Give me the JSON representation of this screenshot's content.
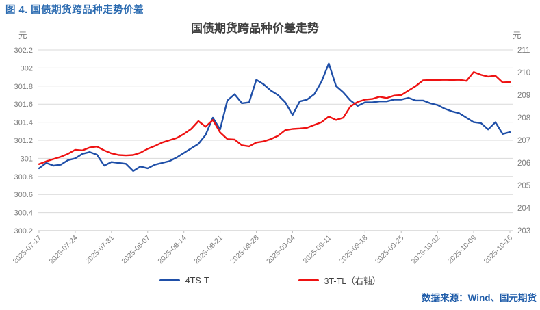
{
  "caption": "图 4. 国债期货跨品种走势价差",
  "source": "数据来源：Wind、国元期货",
  "colors": {
    "caption": "#2A6AB0",
    "source": "#1F5CA9",
    "title": "#404040",
    "axis_text": "#7F7F7F",
    "grid": "#D9D9D9",
    "tick": "#BFBFBF",
    "blue_line": "#1F4FA8",
    "red_line": "#EE1212"
  },
  "chart_data": {
    "type": "line",
    "title": "国债期货跨品种价差走势",
    "grid": true,
    "legend_position": "bottom",
    "left_axis": {
      "unit": "元",
      "min": 300.2,
      "max": 302.2,
      "tick_labels": [
        "302.2",
        "302",
        "301.8",
        "301.6",
        "301.4",
        "301.2",
        "301",
        "300.8",
        "300.6",
        "300.4",
        "300.2"
      ]
    },
    "right_axis": {
      "unit": "元",
      "min": 203,
      "max": 211,
      "tick_labels": [
        "211",
        "210",
        "209",
        "208",
        "207",
        "206",
        "205",
        "204",
        "203"
      ]
    },
    "x_tick_labels": [
      "2025-07-17",
      "2025-07-24",
      "2025-07-31",
      "2025-08-07",
      "2025-08-14",
      "2025-08-21",
      "2025-08-28",
      "2025-09-04",
      "2025-09-11",
      "2025-09-18",
      "2025-09-25",
      "2025-10-02",
      "2025-10-09",
      "2025-10-16"
    ],
    "points_per_tick": 5,
    "series": [
      {
        "name": "4TS-T",
        "axis": "left",
        "color_key": "blue_line",
        "values": [
          300.89,
          300.95,
          300.92,
          300.93,
          300.98,
          301.0,
          301.05,
          301.07,
          301.04,
          300.92,
          300.96,
          300.95,
          300.94,
          300.86,
          300.91,
          300.89,
          300.93,
          300.95,
          300.97,
          301.01,
          301.06,
          301.11,
          301.16,
          301.26,
          301.45,
          301.32,
          301.64,
          301.71,
          301.61,
          301.62,
          301.87,
          301.82,
          301.75,
          301.7,
          301.62,
          301.48,
          301.63,
          301.65,
          301.71,
          301.85,
          302.05,
          301.8,
          301.73,
          301.64,
          301.58,
          301.62,
          301.62,
          301.63,
          301.63,
          301.65,
          301.65,
          301.67,
          301.64,
          301.64,
          301.61,
          301.59,
          301.55,
          301.52,
          301.5,
          301.45,
          301.4,
          301.39,
          301.32,
          301.4,
          301.27,
          301.29
        ]
      },
      {
        "name": "3T-TL（右轴）",
        "axis": "right",
        "color_key": "red_line",
        "values": [
          205.95,
          206.07,
          206.17,
          206.27,
          206.4,
          206.58,
          206.55,
          206.68,
          206.72,
          206.55,
          206.42,
          206.35,
          206.33,
          206.35,
          206.45,
          206.62,
          206.75,
          206.9,
          207.0,
          207.1,
          207.28,
          207.5,
          207.85,
          207.6,
          207.9,
          207.35,
          207.05,
          207.03,
          206.78,
          206.73,
          206.9,
          206.95,
          207.05,
          207.2,
          207.45,
          207.5,
          207.52,
          207.55,
          207.68,
          207.8,
          208.05,
          207.9,
          208.0,
          208.5,
          208.7,
          208.8,
          208.83,
          208.93,
          208.87,
          208.98,
          209.0,
          209.2,
          209.4,
          209.65,
          209.67,
          209.67,
          209.68,
          209.67,
          209.68,
          209.63,
          210.02,
          209.9,
          209.82,
          209.86,
          209.56,
          209.58
        ]
      }
    ]
  }
}
